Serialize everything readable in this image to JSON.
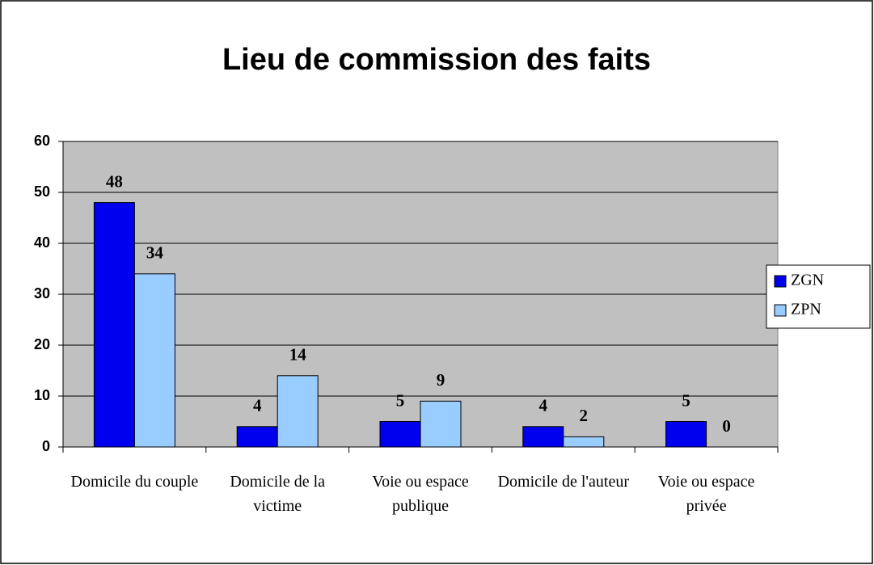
{
  "chart_data": {
    "type": "bar",
    "title": "Lieu de commission des faits",
    "categories": [
      "Domicile du couple",
      "Domicile de la victime",
      "Voie ou espace publique",
      "Domicile de l'auteur",
      "Voie ou espace privée"
    ],
    "series": [
      {
        "name": "ZGN",
        "color": "#0000ee",
        "values": [
          48,
          4,
          5,
          4,
          5
        ]
      },
      {
        "name": "ZPN",
        "color": "#99ccff",
        "values": [
          34,
          14,
          9,
          2,
          0
        ]
      }
    ],
    "ylim": [
      0,
      60
    ],
    "yticks": [
      0,
      10,
      20,
      30,
      40,
      50,
      60
    ],
    "grid": true,
    "legend": "right"
  }
}
